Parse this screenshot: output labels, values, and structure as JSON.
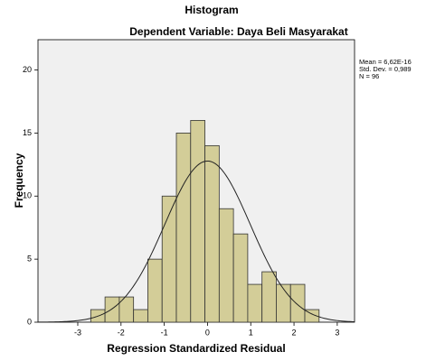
{
  "chart_data": {
    "type": "histogram",
    "title": "Histogram",
    "subtitle": "Dependent Variable: Daya Beli Masyarakat",
    "x_label": "Regression Standardized Residual",
    "y_label": "Frequency",
    "bins": [
      -2.7,
      -2.37,
      -2.04,
      -1.71,
      -1.38,
      -1.05,
      -0.72,
      -0.39,
      -0.06,
      0.27,
      0.6,
      0.93,
      1.26,
      1.59,
      1.92,
      2.25,
      2.58
    ],
    "values": [
      1,
      2,
      2,
      1,
      5,
      10,
      15,
      16,
      14,
      9,
      7,
      3,
      4,
      3,
      3,
      1
    ],
    "color": "#d3cd98",
    "xlim": [
      -3.92,
      3.4
    ],
    "ylim": [
      0,
      22.4
    ],
    "xticks": [
      -3,
      -2,
      -1,
      0,
      1,
      2,
      3
    ],
    "yticks": [
      0,
      5,
      10,
      15,
      20
    ],
    "annotations": [
      "Mean = 6,62E-16",
      "Std. Dev. = 0,989",
      "N = 96"
    ],
    "normal_curve": {
      "mean": 6.62e-16,
      "sd": 0.989,
      "n": 96
    }
  }
}
